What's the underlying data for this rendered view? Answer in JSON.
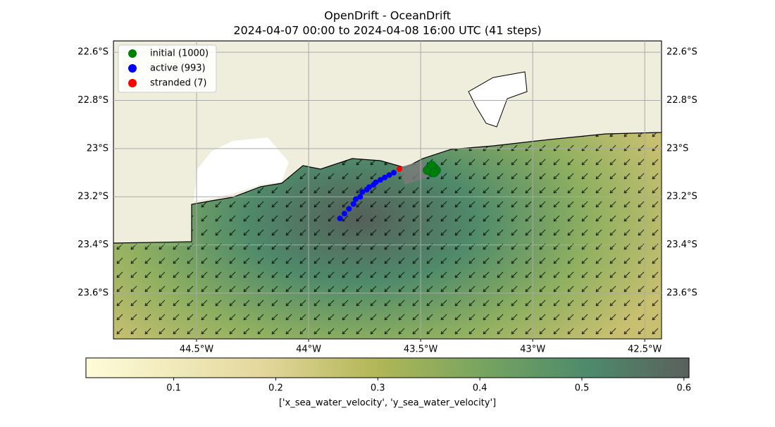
{
  "title": "OpenDrift - OceanDrift",
  "subtitle": "2024-04-07 00:00 to 2024-04-08 16:00 UTC (41 steps)",
  "map": {
    "xlim": [
      -44.871,
      -42.425
    ],
    "ylim": [
      -23.79,
      -22.553
    ],
    "xticks": [
      {
        "value": -44.5,
        "label": "44.5°W"
      },
      {
        "value": -44,
        "label": "44°W"
      },
      {
        "value": -43.5,
        "label": "43.5°W"
      },
      {
        "value": -43,
        "label": "43°W"
      },
      {
        "value": -42.5,
        "label": "42.5°W"
      }
    ],
    "yticks": [
      {
        "value": -22.6,
        "label": "22.6°S"
      },
      {
        "value": -22.8,
        "label": "22.8°S"
      },
      {
        "value": -23,
        "label": "23°S"
      },
      {
        "value": -23.2,
        "label": "23.2°S"
      },
      {
        "value": -23.4,
        "label": "23.4°S"
      },
      {
        "value": -23.6,
        "label": "23.6°S"
      }
    ],
    "grid": true,
    "legend": "upper left",
    "series": [
      {
        "name": "initial (1000)",
        "color": "green",
        "lon": [
          -43.46,
          -43.44,
          -43.45,
          -43.43,
          -43.47,
          -43.45,
          -43.44
        ],
        "lat": [
          -23.08,
          -23.08,
          -23.1,
          -23.09,
          -23.09,
          -23.07,
          -23.1
        ]
      },
      {
        "name": "active (993)",
        "color": "blue",
        "lon": [
          -43.86,
          -43.84,
          -43.82,
          -43.8,
          -43.79,
          -43.77,
          -43.76,
          -43.74,
          -43.73,
          -43.71,
          -43.7,
          -43.68,
          -43.66,
          -43.64,
          -43.62
        ],
        "lat": [
          -23.29,
          -23.27,
          -23.25,
          -23.23,
          -23.21,
          -23.2,
          -23.18,
          -23.17,
          -23.16,
          -23.15,
          -23.14,
          -23.13,
          -23.12,
          -23.11,
          -23.1
        ]
      },
      {
        "name": "stranded (7)",
        "color": "red",
        "lon": [
          -43.595
        ],
        "lat": [
          -23.085
        ]
      }
    ]
  },
  "colorbar": {
    "label": "['x_sea_water_velocity', 'y_sea_water_velocity']",
    "lim": [
      0.014,
      0.605
    ],
    "ticks": [
      0.1,
      0.2,
      0.3,
      0.4,
      0.5,
      0.6
    ]
  }
}
